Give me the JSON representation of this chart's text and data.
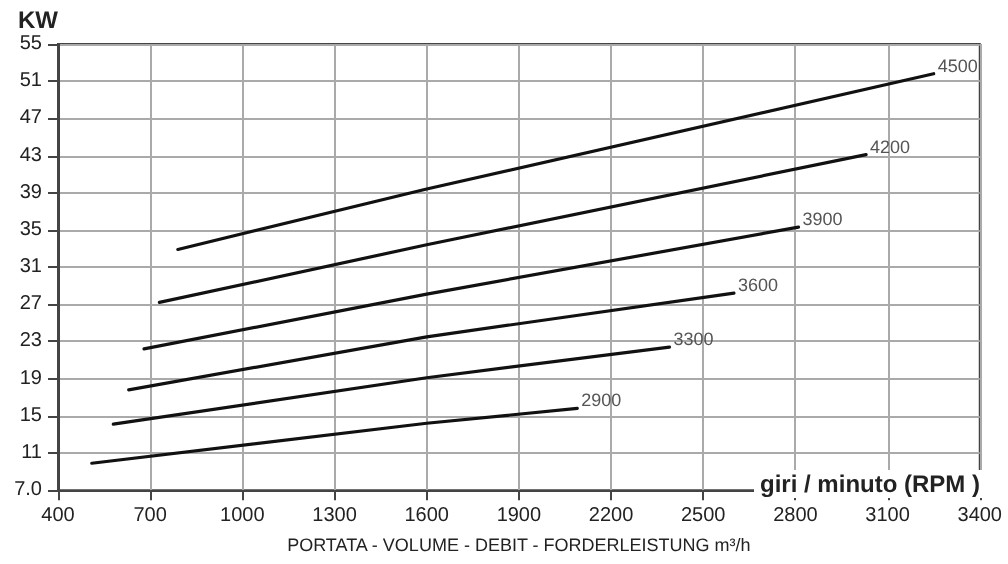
{
  "chart_data": {
    "type": "line",
    "xlabel": "PORTATA - VOLUME - DEBIT - FORDERLEISTUNG m³/h",
    "ylabel": "KW",
    "annotations": [
      "giri / minuto (RPM )"
    ],
    "xlim": [
      400,
      3400
    ],
    "xticks": [
      400,
      700,
      1000,
      1300,
      1600,
      1900,
      2200,
      2500,
      2800,
      3100,
      3400
    ],
    "ylim": [
      7,
      55
    ],
    "yticks": [
      {
        "value": 7,
        "label": "7.0"
      },
      11,
      15,
      19,
      23,
      27,
      31,
      35,
      39,
      43,
      47,
      51,
      55
    ],
    "grid": true,
    "marker": "none",
    "line_style": "solid",
    "legend": false,
    "series": [
      {
        "name": "2900",
        "color": "#111111",
        "x": [
          510,
          1600,
          2090
        ],
        "values": [
          9.9,
          14.2,
          15.8
        ]
      },
      {
        "name": "3300",
        "color": "#111111",
        "x": [
          580,
          1600,
          2390
        ],
        "values": [
          14.1,
          19.1,
          22.4
        ]
      },
      {
        "name": "3600",
        "color": "#111111",
        "x": [
          630,
          1600,
          2600
        ],
        "values": [
          17.8,
          23.5,
          28.2
        ]
      },
      {
        "name": "3900",
        "color": "#111111",
        "x": [
          680,
          1600,
          2810
        ],
        "values": [
          22.2,
          28.1,
          35.3
        ]
      },
      {
        "name": "4200",
        "color": "#111111",
        "x": [
          730,
          1600,
          3030
        ],
        "values": [
          27.2,
          33.4,
          43.1
        ]
      },
      {
        "name": "4500",
        "color": "#111111",
        "x": [
          790,
          1600,
          3250
        ],
        "values": [
          32.9,
          39.4,
          51.8
        ]
      }
    ]
  }
}
